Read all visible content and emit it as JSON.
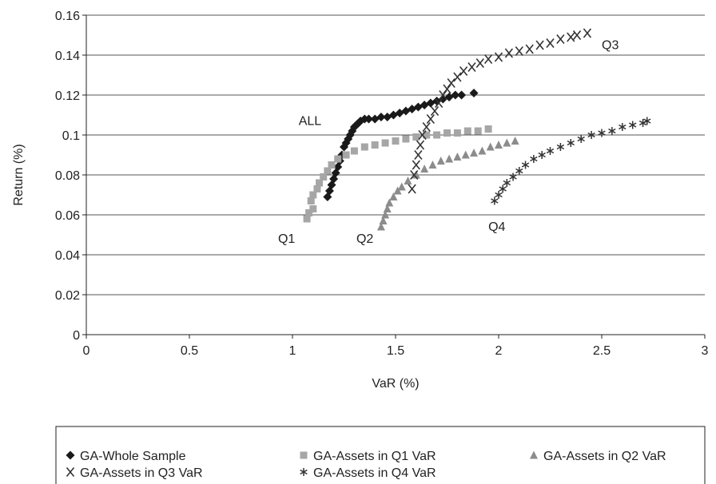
{
  "chart_data": {
    "type": "scatter",
    "xlabel": "VaR (%)",
    "ylabel": "Return (%)",
    "xlim": [
      0,
      3
    ],
    "ylim": [
      0,
      0.16
    ],
    "x_ticks": [
      "0",
      "0.5",
      "1",
      "1.5",
      "2",
      "2.5",
      "3"
    ],
    "y_ticks": [
      "0",
      "0.02",
      "0.04",
      "0.06",
      "0.08",
      "0.1",
      "0.12",
      "0.14",
      "0.16"
    ],
    "grid": "horizontal",
    "legend_position": "bottom",
    "annotations": [
      {
        "text": "ALL",
        "x": 1.03,
        "y": 0.105
      },
      {
        "text": "Q1",
        "x": 0.93,
        "y": 0.046
      },
      {
        "text": "Q2",
        "x": 1.31,
        "y": 0.046
      },
      {
        "text": "Q3",
        "x": 2.5,
        "y": 0.143
      },
      {
        "text": "Q4",
        "x": 1.95,
        "y": 0.052
      }
    ],
    "series": [
      {
        "name": "GA-Whole Sample",
        "marker": "diamond",
        "color": "#1a1a1a",
        "points": [
          [
            1.17,
            0.069
          ],
          [
            1.18,
            0.072
          ],
          [
            1.19,
            0.075
          ],
          [
            1.2,
            0.078
          ],
          [
            1.21,
            0.081
          ],
          [
            1.22,
            0.084
          ],
          [
            1.23,
            0.087
          ],
          [
            1.24,
            0.09
          ],
          [
            1.25,
            0.094
          ],
          [
            1.26,
            0.096
          ],
          [
            1.27,
            0.098
          ],
          [
            1.28,
            0.1
          ],
          [
            1.29,
            0.102
          ],
          [
            1.3,
            0.104
          ],
          [
            1.31,
            0.105
          ],
          [
            1.32,
            0.106
          ],
          [
            1.33,
            0.107
          ],
          [
            1.35,
            0.108
          ],
          [
            1.37,
            0.108
          ],
          [
            1.4,
            0.108
          ],
          [
            1.43,
            0.109
          ],
          [
            1.46,
            0.109
          ],
          [
            1.49,
            0.11
          ],
          [
            1.52,
            0.111
          ],
          [
            1.55,
            0.112
          ],
          [
            1.58,
            0.113
          ],
          [
            1.61,
            0.114
          ],
          [
            1.64,
            0.115
          ],
          [
            1.67,
            0.116
          ],
          [
            1.7,
            0.117
          ],
          [
            1.73,
            0.118
          ],
          [
            1.76,
            0.119
          ],
          [
            1.79,
            0.12
          ],
          [
            1.82,
            0.12
          ],
          [
            1.88,
            0.121
          ]
        ]
      },
      {
        "name": "GA-Assets in Q1 VaR",
        "marker": "square",
        "color": "#a6a6a6",
        "points": [
          [
            1.07,
            0.058
          ],
          [
            1.08,
            0.061
          ],
          [
            1.1,
            0.063
          ],
          [
            1.09,
            0.067
          ],
          [
            1.1,
            0.07
          ],
          [
            1.12,
            0.073
          ],
          [
            1.13,
            0.076
          ],
          [
            1.15,
            0.079
          ],
          [
            1.17,
            0.082
          ],
          [
            1.19,
            0.085
          ],
          [
            1.22,
            0.088
          ],
          [
            1.26,
            0.09
          ],
          [
            1.3,
            0.092
          ],
          [
            1.35,
            0.094
          ],
          [
            1.4,
            0.095
          ],
          [
            1.45,
            0.096
          ],
          [
            1.5,
            0.097
          ],
          [
            1.55,
            0.098
          ],
          [
            1.6,
            0.099
          ],
          [
            1.65,
            0.1
          ],
          [
            1.7,
            0.1
          ],
          [
            1.75,
            0.101
          ],
          [
            1.8,
            0.101
          ],
          [
            1.85,
            0.102
          ],
          [
            1.9,
            0.102
          ],
          [
            1.95,
            0.103
          ]
        ]
      },
      {
        "name": "GA-Assets in Q2 VaR",
        "marker": "triangle",
        "color": "#8c8c8c",
        "points": [
          [
            1.43,
            0.054
          ],
          [
            1.44,
            0.057
          ],
          [
            1.45,
            0.06
          ],
          [
            1.46,
            0.063
          ],
          [
            1.47,
            0.066
          ],
          [
            1.49,
            0.069
          ],
          [
            1.51,
            0.072
          ],
          [
            1.53,
            0.074
          ],
          [
            1.56,
            0.077
          ],
          [
            1.6,
            0.08
          ],
          [
            1.64,
            0.083
          ],
          [
            1.68,
            0.085
          ],
          [
            1.72,
            0.087
          ],
          [
            1.76,
            0.088
          ],
          [
            1.8,
            0.089
          ],
          [
            1.84,
            0.09
          ],
          [
            1.88,
            0.091
          ],
          [
            1.92,
            0.092
          ],
          [
            1.96,
            0.094
          ],
          [
            2.0,
            0.095
          ],
          [
            2.04,
            0.096
          ],
          [
            2.08,
            0.097
          ]
        ]
      },
      {
        "name": "GA-Assets in Q3 VaR",
        "marker": "x",
        "color": "#333333",
        "points": [
          [
            1.58,
            0.073
          ],
          [
            1.59,
            0.08
          ],
          [
            1.6,
            0.085
          ],
          [
            1.61,
            0.09
          ],
          [
            1.62,
            0.095
          ],
          [
            1.63,
            0.1
          ],
          [
            1.65,
            0.104
          ],
          [
            1.67,
            0.108
          ],
          [
            1.69,
            0.112
          ],
          [
            1.71,
            0.116
          ],
          [
            1.73,
            0.12
          ],
          [
            1.75,
            0.123
          ],
          [
            1.77,
            0.126
          ],
          [
            1.8,
            0.129
          ],
          [
            1.83,
            0.132
          ],
          [
            1.87,
            0.134
          ],
          [
            1.91,
            0.136
          ],
          [
            1.95,
            0.138
          ],
          [
            2.0,
            0.139
          ],
          [
            2.05,
            0.141
          ],
          [
            2.1,
            0.142
          ],
          [
            2.15,
            0.143
          ],
          [
            2.2,
            0.145
          ],
          [
            2.25,
            0.146
          ],
          [
            2.3,
            0.148
          ],
          [
            2.35,
            0.149
          ],
          [
            2.38,
            0.15
          ],
          [
            2.43,
            0.151
          ]
        ]
      },
      {
        "name": "GA-Assets in Q4 VaR",
        "marker": "star",
        "color": "#333333",
        "points": [
          [
            1.98,
            0.067
          ],
          [
            2.0,
            0.07
          ],
          [
            2.02,
            0.073
          ],
          [
            2.04,
            0.076
          ],
          [
            2.07,
            0.079
          ],
          [
            2.1,
            0.082
          ],
          [
            2.13,
            0.085
          ],
          [
            2.17,
            0.088
          ],
          [
            2.21,
            0.09
          ],
          [
            2.25,
            0.092
          ],
          [
            2.3,
            0.094
          ],
          [
            2.35,
            0.096
          ],
          [
            2.4,
            0.098
          ],
          [
            2.45,
            0.1
          ],
          [
            2.5,
            0.101
          ],
          [
            2.55,
            0.102
          ],
          [
            2.6,
            0.104
          ],
          [
            2.65,
            0.105
          ],
          [
            2.7,
            0.106
          ],
          [
            2.72,
            0.107
          ]
        ]
      }
    ]
  }
}
